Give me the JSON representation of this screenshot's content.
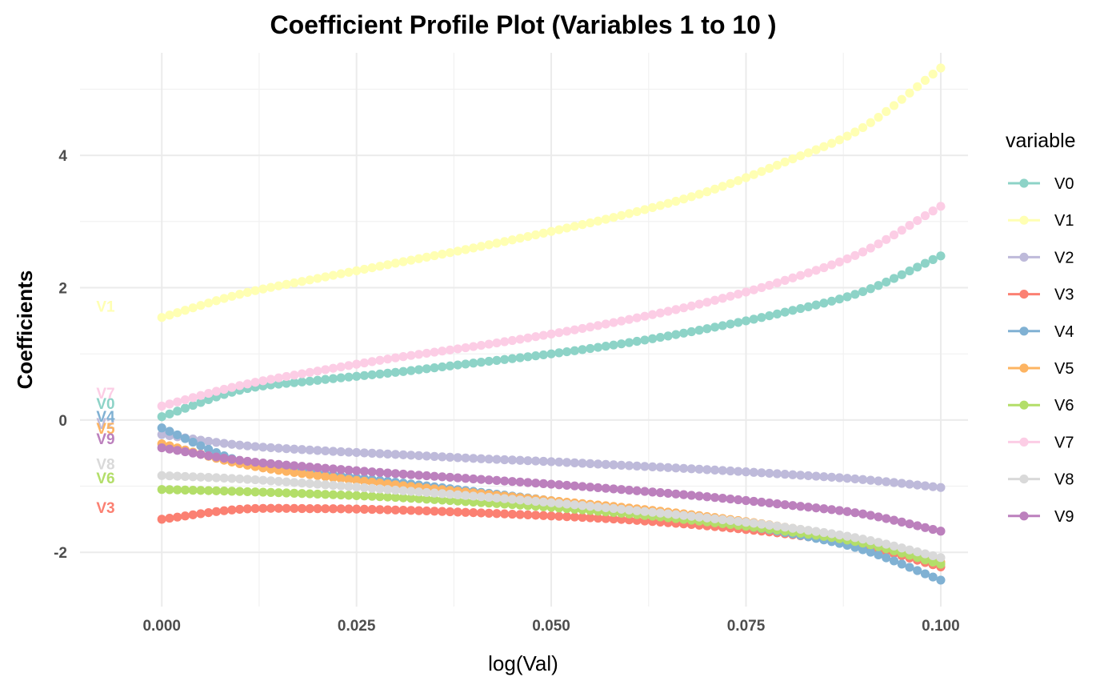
{
  "chart_data": {
    "type": "scatter",
    "title": "Coefficient Profile Plot (Variables 1 to 10 )",
    "xlabel": "log(Val)",
    "ylabel": "Coefficients",
    "xlim": [
      -0.0105,
      0.1035
    ],
    "ylim": [
      -2.82,
      5.55
    ],
    "x_ticks": [
      0.0,
      0.025,
      0.05,
      0.075,
      0.1
    ],
    "x_tick_labels": [
      "0.000",
      "0.025",
      "0.050",
      "0.075",
      "0.100"
    ],
    "y_ticks": [
      -2,
      0,
      2,
      4
    ],
    "y_tick_labels": [
      "-2",
      "0",
      "2",
      "4"
    ],
    "grid": true,
    "legend_title": "variable",
    "legend_position": "right",
    "x_range": [
      0.0,
      0.1
    ],
    "n_points": 101,
    "series": [
      {
        "name": "V0",
        "color": "#8DD3C7",
        "label": "V0",
        "label_y": 0.25,
        "x": [
          0,
          0.01,
          0.02,
          0.03,
          0.04,
          0.05,
          0.06,
          0.07,
          0.08,
          0.09,
          0.1
        ],
        "values": [
          0.05,
          0.45,
          0.6,
          0.72,
          0.86,
          1.0,
          1.17,
          1.38,
          1.63,
          1.94,
          2.48
        ]
      },
      {
        "name": "V1",
        "color": "#FFFFB3",
        "label": "V1",
        "label_y": 1.72,
        "x": [
          0,
          0.01,
          0.02,
          0.03,
          0.04,
          0.05,
          0.06,
          0.07,
          0.08,
          0.09,
          0.1
        ],
        "values": [
          1.55,
          1.9,
          2.14,
          2.37,
          2.6,
          2.85,
          3.12,
          3.45,
          3.9,
          4.42,
          5.32
        ]
      },
      {
        "name": "V2",
        "color": "#BEBADA",
        "label": "V2",
        "label_y": -0.05,
        "x": [
          0,
          0.01,
          0.02,
          0.03,
          0.04,
          0.05,
          0.06,
          0.07,
          0.08,
          0.09,
          0.1
        ],
        "values": [
          -0.22,
          -0.38,
          -0.46,
          -0.52,
          -0.58,
          -0.63,
          -0.69,
          -0.75,
          -0.82,
          -0.9,
          -1.02
        ]
      },
      {
        "name": "V3",
        "color": "#FB8072",
        "label": "V3",
        "label_y": -1.32,
        "x": [
          0,
          0.01,
          0.02,
          0.03,
          0.04,
          0.05,
          0.06,
          0.07,
          0.08,
          0.09,
          0.1
        ],
        "values": [
          -1.5,
          -1.35,
          -1.34,
          -1.36,
          -1.4,
          -1.45,
          -1.51,
          -1.6,
          -1.72,
          -1.9,
          -2.22
        ]
      },
      {
        "name": "V4",
        "color": "#80B1D3",
        "label": "V4",
        "label_y": 0.06,
        "x": [
          0,
          0.01,
          0.02,
          0.03,
          0.04,
          0.05,
          0.06,
          0.07,
          0.08,
          0.09,
          0.1
        ],
        "values": [
          -0.12,
          -0.62,
          -0.8,
          -0.94,
          -1.08,
          -1.22,
          -1.36,
          -1.52,
          -1.7,
          -1.96,
          -2.42
        ]
      },
      {
        "name": "V5",
        "color": "#FDB462",
        "label": "V5",
        "label_y": -0.12,
        "x": [
          0,
          0.01,
          0.02,
          0.03,
          0.04,
          0.05,
          0.06,
          0.07,
          0.08,
          0.09,
          0.1
        ],
        "values": [
          -0.36,
          -0.66,
          -0.84,
          -0.98,
          -1.1,
          -1.22,
          -1.33,
          -1.46,
          -1.62,
          -1.82,
          -2.15
        ]
      },
      {
        "name": "V6",
        "color": "#B3DE69",
        "label": "V6",
        "label_y": -0.87,
        "x": [
          0,
          0.01,
          0.02,
          0.03,
          0.04,
          0.05,
          0.06,
          0.07,
          0.08,
          0.09,
          0.1
        ],
        "values": [
          -1.05,
          -1.08,
          -1.12,
          -1.17,
          -1.24,
          -1.32,
          -1.42,
          -1.54,
          -1.68,
          -1.86,
          -2.18
        ]
      },
      {
        "name": "V7",
        "color": "#FCCDE5",
        "label": "V7",
        "label_y": 0.41,
        "x": [
          0,
          0.01,
          0.02,
          0.03,
          0.04,
          0.05,
          0.06,
          0.07,
          0.08,
          0.09,
          0.1
        ],
        "values": [
          0.21,
          0.52,
          0.74,
          0.94,
          1.11,
          1.3,
          1.52,
          1.78,
          2.11,
          2.54,
          3.23
        ]
      },
      {
        "name": "V8",
        "color": "#D9D9D9",
        "label": "V8",
        "label_y": -0.66,
        "x": [
          0,
          0.01,
          0.02,
          0.03,
          0.04,
          0.05,
          0.06,
          0.07,
          0.08,
          0.09,
          0.1
        ],
        "values": [
          -0.84,
          -0.89,
          -0.97,
          -1.06,
          -1.15,
          -1.25,
          -1.36,
          -1.48,
          -1.62,
          -1.8,
          -2.08
        ]
      },
      {
        "name": "V9",
        "color": "#BC80BD",
        "label": "V9",
        "label_y": -0.28,
        "x": [
          0,
          0.01,
          0.02,
          0.03,
          0.04,
          0.05,
          0.06,
          0.07,
          0.08,
          0.09,
          0.1
        ],
        "values": [
          -0.42,
          -0.61,
          -0.72,
          -0.81,
          -0.89,
          -0.97,
          -1.06,
          -1.16,
          -1.28,
          -1.42,
          -1.68
        ]
      }
    ]
  }
}
